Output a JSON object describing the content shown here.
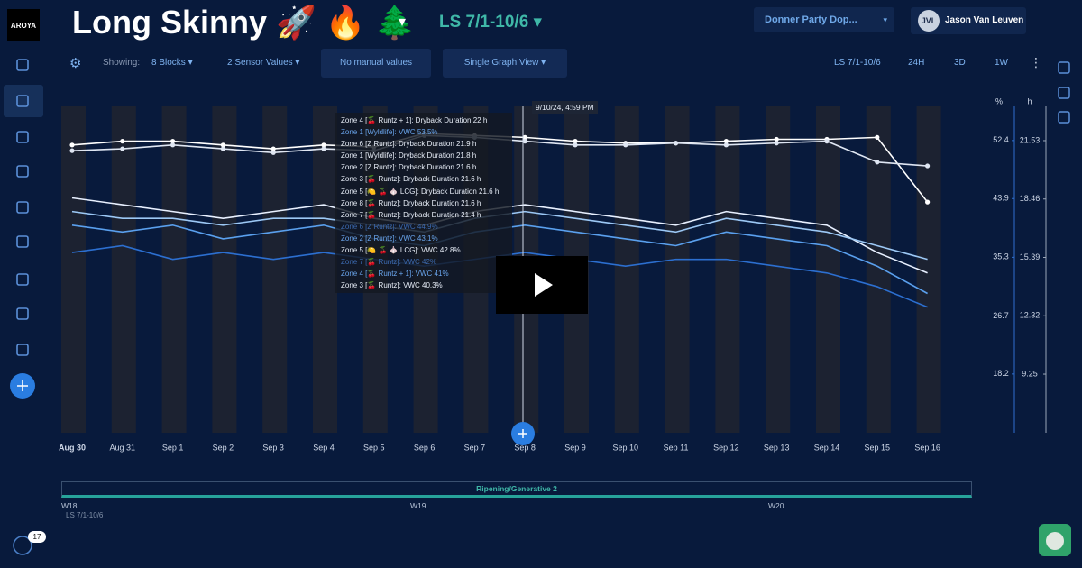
{
  "header": {
    "logo": "AROYA",
    "title": "Long Skinny 🚀 🔥 🌲",
    "title_caret": "▾",
    "range": "LS 7/1-10/6 ▾",
    "facility": "Donner Party Dop...",
    "facility_caret": "▾",
    "user_initials": "JVL",
    "user_name": "Jason Van Leuven"
  },
  "toolbar": {
    "showing_label": "Showing:",
    "blocks": "8 Blocks ▾",
    "sensor_values": "2 Sensor Values ▾",
    "manual_values": "No manual values",
    "view": "Single Graph View ▾",
    "range": "LS 7/1-10/6",
    "zoom_24h": "24H",
    "zoom_3d": "3D",
    "zoom_1w": "1W"
  },
  "chart_data": {
    "type": "line",
    "y_label": "%",
    "y2_label": "h",
    "categories": [
      "Aug 30",
      "Aug 31",
      "Sep 1",
      "Sep 2",
      "Sep 3",
      "Sep 4",
      "Sep 5",
      "Sep 6",
      "Sep 7",
      "Sep 8",
      "Sep 9",
      "Sep 10",
      "Sep 11",
      "Sep 12",
      "Sep 13",
      "Sep 14",
      "Sep 15",
      "Sep 16"
    ],
    "ylim": [
      9.6,
      57.4
    ],
    "yticks": [
      18.2,
      26.7,
      35.3,
      43.9,
      52.4
    ],
    "y2lim": [
      6.17,
      23.33
    ],
    "y2ticks": [
      9.25,
      12.32,
      15.39,
      18.46,
      21.53
    ],
    "series": [
      {
        "color": "#e8f0ff",
        "values": [
          44,
          43,
          42,
          41,
          42,
          43,
          41,
          40,
          42,
          43,
          42,
          41,
          40,
          42,
          41,
          40,
          36,
          33
        ]
      },
      {
        "color": "#5aa0ee",
        "values": [
          40,
          39,
          40,
          38,
          39,
          40,
          38,
          37,
          39,
          40,
          39,
          38,
          37,
          39,
          38,
          37,
          34,
          30
        ]
      },
      {
        "color": "#2c6fd0",
        "values": [
          36,
          37,
          35,
          36,
          35,
          36,
          35,
          34,
          35,
          36,
          35,
          34,
          35,
          35,
          34,
          33,
          31,
          28
        ]
      },
      {
        "color": "#9cc8f5",
        "values": [
          42,
          41,
          41,
          40,
          41,
          41,
          40,
          39,
          41,
          42,
          41,
          40,
          39,
          41,
          40,
          39,
          37,
          35
        ]
      },
      {
        "color": "#ffffff",
        "axis": "y2",
        "values": [
          21.3,
          21.5,
          21.5,
          21.3,
          21.1,
          21.3,
          21.2,
          21.9,
          21.8,
          21.7,
          21.5,
          21.4,
          21.4,
          21.5,
          21.6,
          21.6,
          21.7,
          18.3
        ]
      },
      {
        "color": "#dfe6f2",
        "axis": "y2",
        "values": [
          21.0,
          21.1,
          21.3,
          21.1,
          20.9,
          21.1,
          21.0,
          21.8,
          21.7,
          21.5,
          21.3,
          21.3,
          21.4,
          21.3,
          21.4,
          21.5,
          20.4,
          20.2
        ]
      }
    ]
  },
  "tooltip": {
    "timestamp": "9/10/24, 4:59 PM",
    "lines": [
      "Zone 4 [🍒 Runtz + 1]: Dryback Duration 22 h",
      "Zone 1 [Wyldlife]: VWC 53.5%",
      "Zone 6 [Z Runtz]: Dryback Duration 21.9 h",
      "Zone 1 [Wyldlife]: Dryback Duration 21.8 h",
      "Zone 2 [Z Runtz]: Dryback Duration 21.6 h",
      "Zone 3 [🍒 Runtz]: Dryback Duration 21.6 h",
      "Zone 5 [🍋 🍒 🧄 LCG]: Dryback Duration 21.6 h",
      "Zone 8 [🍒 Runtz]: Dryback Duration 21.6 h",
      "Zone 7 [🍒 Runtz]: Dryback Duration 21.4 h",
      "Zone 6 [Z Runtz]: VWC 44.9%",
      "Zone 2 [Z Runtz]: VWC 43.1%",
      "Zone 5 [🍋 🍒 🧄 LCG]: VWC 42.8%",
      "Zone 7 [🍒 Runtz]: VWC 42%",
      "Zone 4 [🍒 Runtz + 1]: VWC 41%",
      "Zone 3 [🍒 Runtz]: VWC 40.3%"
    ]
  },
  "phase": {
    "name": "Ripening/Generative 2",
    "weeks": [
      "W18",
      "W19",
      "W20"
    ],
    "range": "LS 7/1-10/6"
  },
  "footer": {
    "badge": "17"
  }
}
